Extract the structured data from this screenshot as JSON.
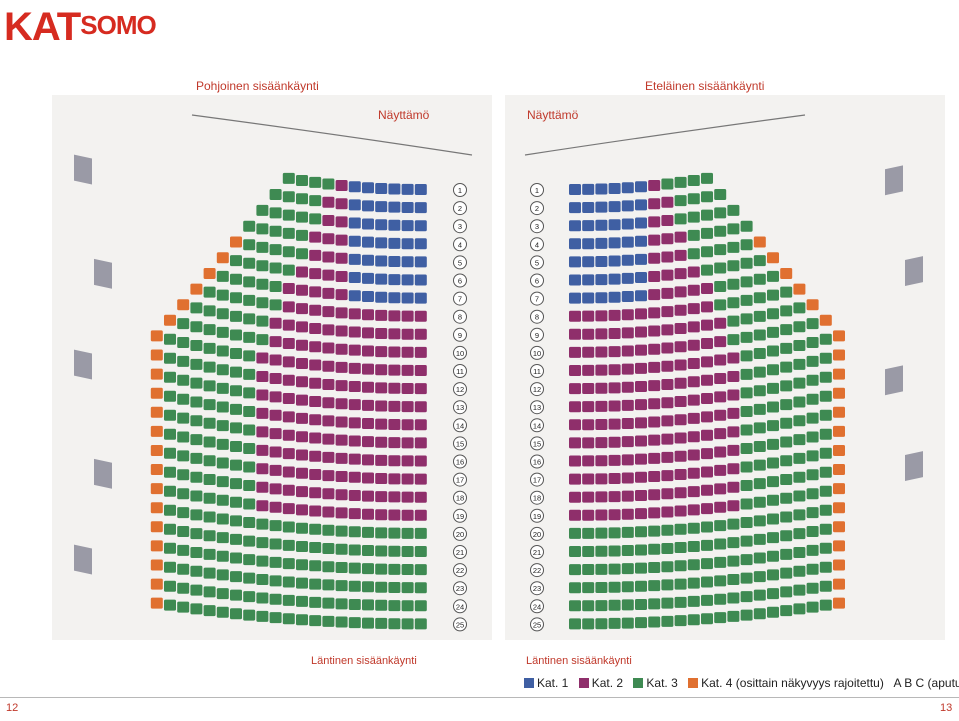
{
  "logo": {
    "prefix": "KAT",
    "suffix": "SOMO"
  },
  "entrances": {
    "north": "Pohjoinen sisäänkäynti",
    "south": "Eteläinen sisäänkäynti",
    "west_left": "Läntinen sisäänkäynti",
    "west_right": "Läntinen sisäänkäynti"
  },
  "stage_left": "Näyttämö",
  "stage_right": "Näyttämö",
  "rows": [
    "1",
    "2",
    "3",
    "4",
    "5",
    "6",
    "7",
    "8",
    "9",
    "10",
    "11",
    "12",
    "13",
    "14",
    "15",
    "16",
    "17",
    "18",
    "19",
    "20",
    "21",
    "22",
    "23",
    "24",
    "25"
  ],
  "legend": {
    "kat1": "Kat. 1",
    "kat2": "Kat. 2",
    "kat3": "Kat. 3",
    "kat4": "Kat. 4 (osittain näkyvyys rajoitettu)",
    "aids": "A B C (aputuolit)"
  },
  "colors": {
    "kat1": "#3f5fa3",
    "kat2": "#8f2f6b",
    "kat3": "#3e8a52",
    "kat4": "#e07030",
    "accent": "#d62b20"
  },
  "page_left": "12",
  "page_right": "13"
}
